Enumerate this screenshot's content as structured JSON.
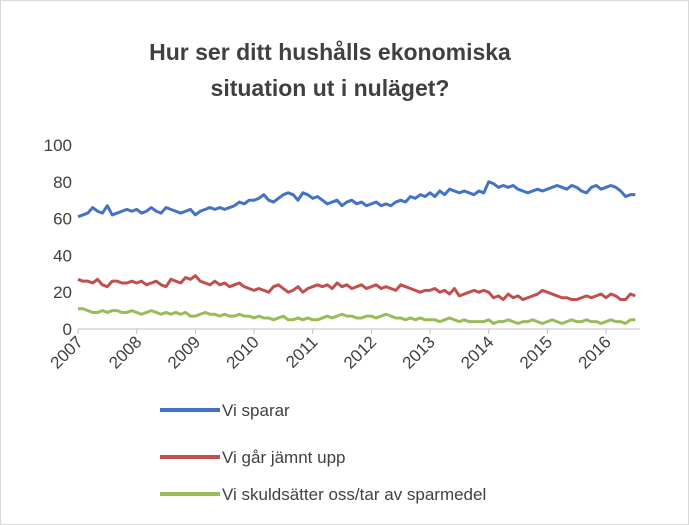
{
  "chart_data": {
    "type": "line",
    "title": "Hur ser ditt hushålls ekonomiska situation ut i nuläget?",
    "categories": [
      "2007",
      null,
      null,
      null,
      null,
      null,
      null,
      null,
      null,
      null,
      null,
      null,
      "2008",
      null,
      null,
      null,
      null,
      null,
      null,
      null,
      null,
      null,
      null,
      null,
      "2009",
      null,
      null,
      null,
      null,
      null,
      null,
      null,
      null,
      null,
      null,
      null,
      "2010",
      null,
      null,
      null,
      null,
      null,
      null,
      null,
      null,
      null,
      null,
      null,
      "2011",
      null,
      null,
      null,
      null,
      null,
      null,
      null,
      null,
      null,
      null,
      null,
      "2012",
      null,
      null,
      null,
      null,
      null,
      null,
      null,
      null,
      null,
      null,
      null,
      "2013",
      null,
      null,
      null,
      null,
      null,
      null,
      null,
      null,
      null,
      null,
      null,
      "2014",
      null,
      null,
      null,
      null,
      null,
      null,
      null,
      null,
      null,
      null,
      null,
      "2015",
      null,
      null,
      null,
      null,
      null,
      null,
      null,
      null,
      null,
      null,
      null,
      "2016",
      null,
      null,
      null,
      null,
      null,
      null
    ],
    "series": [
      {
        "name": "Vi sparar",
        "color": "#4472c4",
        "values": [
          61,
          62,
          63,
          66,
          64,
          63,
          67,
          62,
          63,
          64,
          65,
          64,
          65,
          63,
          64,
          66,
          64,
          63,
          66,
          65,
          64,
          63,
          64,
          65,
          62,
          64,
          65,
          66,
          65,
          66,
          65,
          66,
          67,
          69,
          68,
          70,
          70,
          71,
          73,
          70,
          69,
          71,
          73,
          74,
          73,
          70,
          74,
          73,
          71,
          72,
          70,
          68,
          69,
          70,
          67,
          69,
          70,
          68,
          69,
          67,
          68,
          69,
          67,
          68,
          67,
          69,
          70,
          69,
          72,
          71,
          73,
          72,
          74,
          72,
          75,
          73,
          76,
          75,
          74,
          75,
          74,
          73,
          75,
          74,
          80,
          79,
          77,
          78,
          77,
          78,
          76,
          75,
          74,
          75,
          76,
          75,
          76,
          77,
          78,
          77,
          76,
          78,
          77,
          75,
          74,
          77,
          78,
          76,
          77,
          78,
          77,
          75,
          72,
          73,
          73
        ]
      },
      {
        "name": "Vi går jämnt upp",
        "color": "#c0504d",
        "values": [
          27,
          26,
          26,
          25,
          27,
          24,
          23,
          26,
          26,
          25,
          25,
          26,
          25,
          26,
          24,
          25,
          26,
          24,
          23,
          27,
          26,
          25,
          28,
          27,
          29,
          26,
          25,
          24,
          26,
          24,
          25,
          23,
          24,
          25,
          23,
          22,
          21,
          22,
          21,
          20,
          23,
          24,
          22,
          20,
          21,
          23,
          20,
          22,
          23,
          24,
          23,
          24,
          22,
          25,
          23,
          24,
          22,
          23,
          24,
          22,
          23,
          24,
          22,
          23,
          22,
          21,
          24,
          23,
          22,
          21,
          20,
          21,
          21,
          22,
          20,
          21,
          19,
          22,
          18,
          19,
          20,
          21,
          20,
          21,
          20,
          17,
          18,
          16,
          19,
          17,
          18,
          16,
          17,
          18,
          19,
          21,
          20,
          19,
          18,
          17,
          17,
          16,
          16,
          17,
          18,
          17,
          18,
          19,
          17,
          19,
          18,
          16,
          16,
          19,
          18
        ]
      },
      {
        "name": "Vi skuldsätter oss/tar av sparmedel",
        "color": "#9bbb59",
        "values": [
          11,
          11,
          10,
          9,
          9,
          10,
          9,
          10,
          10,
          9,
          9,
          10,
          9,
          8,
          9,
          10,
          9,
          8,
          9,
          8,
          9,
          8,
          9,
          7,
          7,
          8,
          9,
          8,
          8,
          7,
          8,
          7,
          7,
          8,
          7,
          7,
          6,
          7,
          6,
          6,
          5,
          6,
          7,
          5,
          5,
          6,
          5,
          6,
          5,
          5,
          6,
          7,
          6,
          7,
          8,
          7,
          7,
          6,
          6,
          7,
          7,
          6,
          7,
          8,
          7,
          6,
          6,
          5,
          6,
          5,
          6,
          5,
          5,
          5,
          4,
          5,
          6,
          5,
          4,
          5,
          4,
          4,
          4,
          4,
          5,
          3,
          4,
          4,
          5,
          4,
          3,
          4,
          4,
          5,
          4,
          3,
          4,
          5,
          4,
          3,
          4,
          5,
          4,
          4,
          5,
          4,
          4,
          3,
          4,
          5,
          4,
          4,
          3,
          5,
          5
        ]
      }
    ],
    "ylim": [
      0,
      100
    ],
    "yticks": [
      0,
      20,
      40,
      60,
      80,
      100
    ],
    "grid": false
  }
}
